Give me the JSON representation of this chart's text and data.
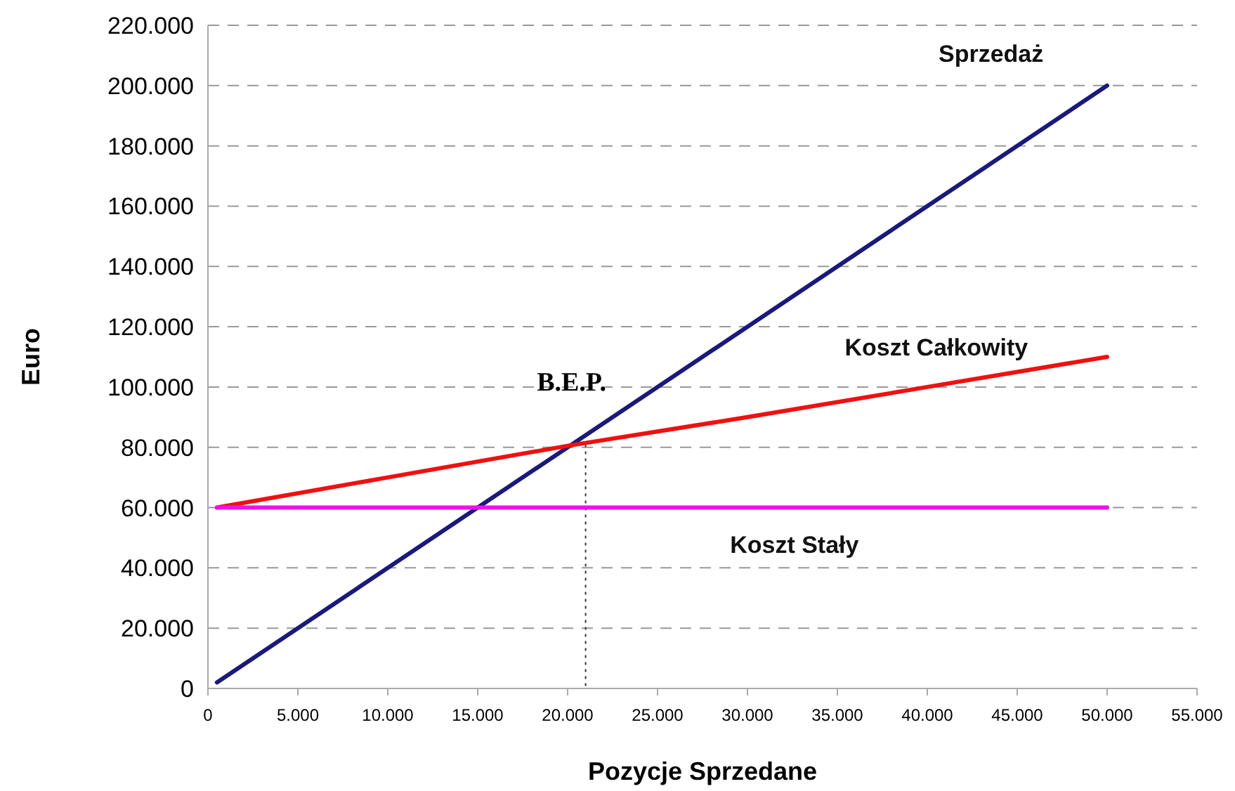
{
  "chart_data": {
    "type": "line",
    "xlabel": "Pozycje Sprzedane",
    "ylabel": "Euro",
    "xlim": [
      0,
      55000
    ],
    "ylim": [
      0,
      220000
    ],
    "xticks": [
      0,
      {
        "value": 5000,
        "label": "5.000"
      },
      {
        "value": 10000,
        "label": "10.000"
      },
      {
        "value": 15000,
        "label": "15.000"
      },
      {
        "value": 20000,
        "label": "20.000"
      },
      {
        "value": 25000,
        "label": "25.000"
      },
      {
        "value": 30000,
        "label": "30.000"
      },
      {
        "value": 35000,
        "label": "35.000"
      },
      {
        "value": 40000,
        "label": "40.000"
      },
      {
        "value": 45000,
        "label": "45.000"
      },
      {
        "value": 50000,
        "label": "50.000"
      },
      {
        "value": 55000,
        "label": "55.000"
      }
    ],
    "yticks": [
      0,
      {
        "value": 20000,
        "label": "20.000"
      },
      {
        "value": 40000,
        "label": "40.000"
      },
      {
        "value": 60000,
        "label": "60.000"
      },
      {
        "value": 80000,
        "label": "80.000"
      },
      {
        "value": 100000,
        "label": "100.000"
      },
      {
        "value": 120000,
        "label": "120.000"
      },
      {
        "value": 140000,
        "label": "140.000"
      },
      {
        "value": 160000,
        "label": "160.000"
      },
      {
        "value": 180000,
        "label": "180.000"
      },
      {
        "value": 200000,
        "label": "200.000"
      },
      {
        "value": 220000,
        "label": "220.000"
      }
    ],
    "grid": "y",
    "marker": "none",
    "line_style": "solid",
    "series": [
      {
        "name": "Sprzedaż",
        "color": "#1a1a7a",
        "x": [
          500,
          50000
        ],
        "values": [
          2000,
          200000
        ]
      },
      {
        "name": "Koszt Całkowity",
        "color": "#ee1111",
        "x": [
          500,
          10000,
          20000,
          30000,
          40000,
          50000
        ],
        "values": [
          60000,
          70000,
          80500,
          90000,
          100000,
          110000
        ]
      },
      {
        "name": "Koszt Stały",
        "color": "#ee11ee",
        "x": [
          500,
          50000
        ],
        "values": [
          60000,
          60000
        ]
      }
    ],
    "ref_lines": [
      {
        "axis": "x",
        "value": 21000,
        "color": "#333333",
        "line_style": "dotted"
      }
    ],
    "annotations": [
      {
        "text": "B.E.P.",
        "x": 21000,
        "y": 81000
      }
    ]
  }
}
